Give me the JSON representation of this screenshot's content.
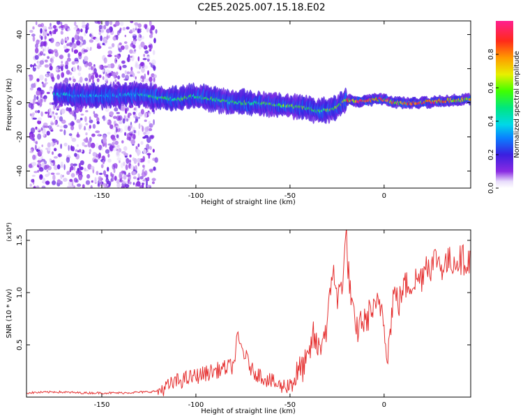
{
  "title": "C2E5.2025.007.15.18.E02",
  "colors": {
    "axis": "#000000",
    "snr_line": "#e53030",
    "background_noise": "#b48cf0",
    "highlight_line": "#e83a5e"
  },
  "chart_data": [
    {
      "type": "heatmap",
      "xlabel": "Height of straight line (km)",
      "ylabel": "Frequency (Hz)",
      "xlim": [
        -190,
        46
      ],
      "ylim": [
        -50,
        48
      ],
      "x_ticks": [
        -150,
        -100,
        -50,
        0
      ],
      "y_ticks": [
        -40,
        -20,
        0,
        20,
        40
      ],
      "x_tick_labels": [
        "-150",
        "-100",
        "-50",
        "0"
      ],
      "y_tick_labels": [
        "-40",
        "-20",
        "0",
        "20",
        "40"
      ],
      "colorbar": {
        "label": "Normalized spectral amplitude",
        "range": [
          0,
          1
        ],
        "ticks": [
          0.0,
          0.2,
          0.4,
          0.6,
          0.8
        ],
        "tick_labels": [
          "0.0",
          "0.2",
          "0.4",
          "0.6",
          "0.8"
        ],
        "colormap": "rainbow (purple-blue-cyan-green-yellow-orange-red-magenta)"
      },
      "noise_region": {
        "x_range": [
          -188,
          -121
        ],
        "y_range": [
          -50,
          48
        ],
        "amplitude": 0.1
      },
      "ridge": {
        "x": [
          -175,
          -160,
          -145,
          -130,
          -120,
          -110,
          -100,
          -90,
          -80,
          -70,
          -60,
          -50,
          -40,
          -35,
          -30,
          -25,
          -20,
          -15,
          -10,
          -5,
          0,
          5,
          10,
          20,
          30,
          45
        ],
        "frequency": [
          5,
          4,
          4,
          5,
          3,
          2,
          4,
          2,
          0,
          0,
          -1,
          -2,
          -3,
          -5,
          -4,
          -3,
          2,
          1,
          1,
          2,
          2,
          0,
          0,
          0,
          1,
          2
        ],
        "amplitude": [
          0.45,
          0.4,
          0.4,
          0.45,
          0.55,
          0.6,
          0.55,
          0.6,
          0.6,
          0.6,
          0.6,
          0.65,
          0.6,
          0.55,
          0.65,
          0.7,
          0.95,
          0.95,
          0.95,
          0.95,
          0.95,
          0.95,
          0.95,
          0.95,
          0.95,
          0.9
        ]
      }
    },
    {
      "type": "line",
      "xlabel": "Height of straight line (km)",
      "ylabel": "SNR (10 * v/v)",
      "scale_note": "(x10⁴)",
      "xlim": [
        -190,
        46
      ],
      "ylim": [
        0,
        1.6
      ],
      "x_ticks": [
        -150,
        -100,
        -50,
        0
      ],
      "y_ticks": [
        0.5,
        1.0,
        1.5
      ],
      "x_tick_labels": [
        "-150",
        "-100",
        "-50",
        "0"
      ],
      "y_tick_labels": [
        "0.5",
        "1.0",
        "1.5"
      ],
      "series": [
        {
          "color": "#e53030",
          "x": [
            -190,
            -175,
            -160,
            -140,
            -125,
            -120,
            -115,
            -110,
            -100,
            -90,
            -80,
            -78,
            -70,
            -60,
            -55,
            -50,
            -45,
            -40,
            -38,
            -35,
            -30,
            -27,
            -25,
            -22,
            -20,
            -19,
            -17,
            -15,
            -12,
            -10,
            -7,
            -5,
            -3,
            -1,
            2,
            5,
            8,
            10,
            15,
            20,
            22,
            25,
            28,
            30,
            35,
            40,
            46
          ],
          "values": [
            0.04,
            0.05,
            0.04,
            0.04,
            0.05,
            0.06,
            0.1,
            0.15,
            0.2,
            0.25,
            0.3,
            0.56,
            0.25,
            0.15,
            0.1,
            0.12,
            0.25,
            0.35,
            0.6,
            0.45,
            0.7,
            1.3,
            0.9,
            1.15,
            1.55,
            1.2,
            0.85,
            0.6,
            0.75,
            0.7,
            0.85,
            0.8,
            0.9,
            0.85,
            0.4,
            1.0,
            0.9,
            1.05,
            1.1,
            1.15,
            1.3,
            1.25,
            1.35,
            1.25,
            1.3,
            1.32,
            1.3
          ]
        }
      ]
    }
  ]
}
